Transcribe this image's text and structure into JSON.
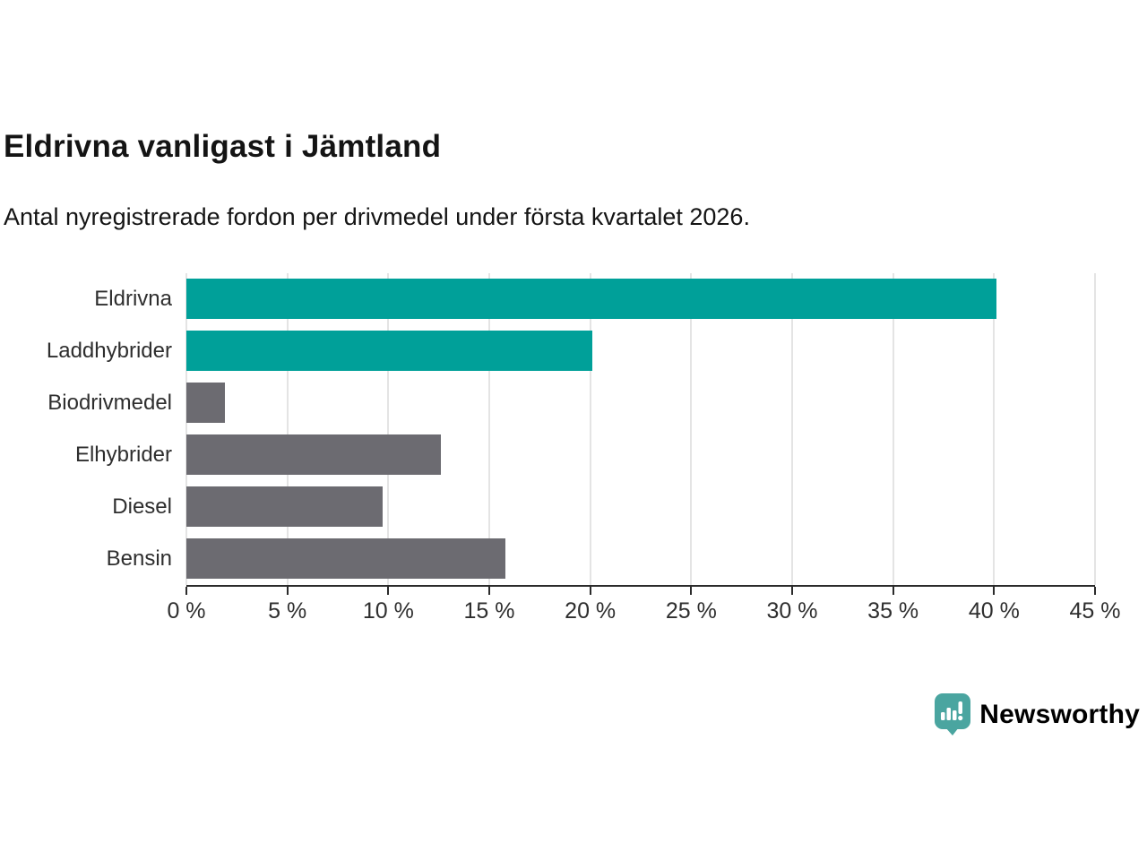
{
  "header": {
    "title": "Eldrivna vanligast i Jämtland",
    "subtitle": "Antal nyregistrerade fordon per drivmedel under första kvartalet 2026."
  },
  "chart_data": {
    "type": "bar",
    "orientation": "horizontal",
    "title": "Eldrivna vanligast i Jämtland",
    "subtitle": "Antal nyregistrerade fordon per drivmedel under första kvartalet 2026.",
    "xlabel": "",
    "ylabel": "",
    "unit": "%",
    "categories": [
      "Eldrivna",
      "Laddhybrider",
      "Biodrivmedel",
      "Elhybrider",
      "Diesel",
      "Bensin"
    ],
    "values": [
      40.1,
      20.1,
      1.9,
      12.6,
      9.7,
      15.8
    ],
    "bar_colors": [
      "#00a099",
      "#00a099",
      "#6c6b71",
      "#6c6b71",
      "#6c6b71",
      "#6c6b71"
    ],
    "xlim": [
      0,
      45
    ],
    "x_ticks": [
      0,
      5,
      10,
      15,
      20,
      25,
      30,
      35,
      40,
      45
    ],
    "x_tick_labels": [
      "0 %",
      "5 %",
      "10 %",
      "15 %",
      "20 %",
      "25 %",
      "30 %",
      "35 %",
      "40 %",
      "45 %"
    ],
    "grid": true,
    "legend": "none"
  },
  "colors": {
    "highlight_teal": "#00a099",
    "bar_gray": "#6c6b71",
    "gridline": "#e4e4e4",
    "axis": "#2b2b2b",
    "text": "#141414",
    "logo_teal": "#4aa5a0"
  },
  "branding": {
    "logo_text": "Newsworthy"
  }
}
